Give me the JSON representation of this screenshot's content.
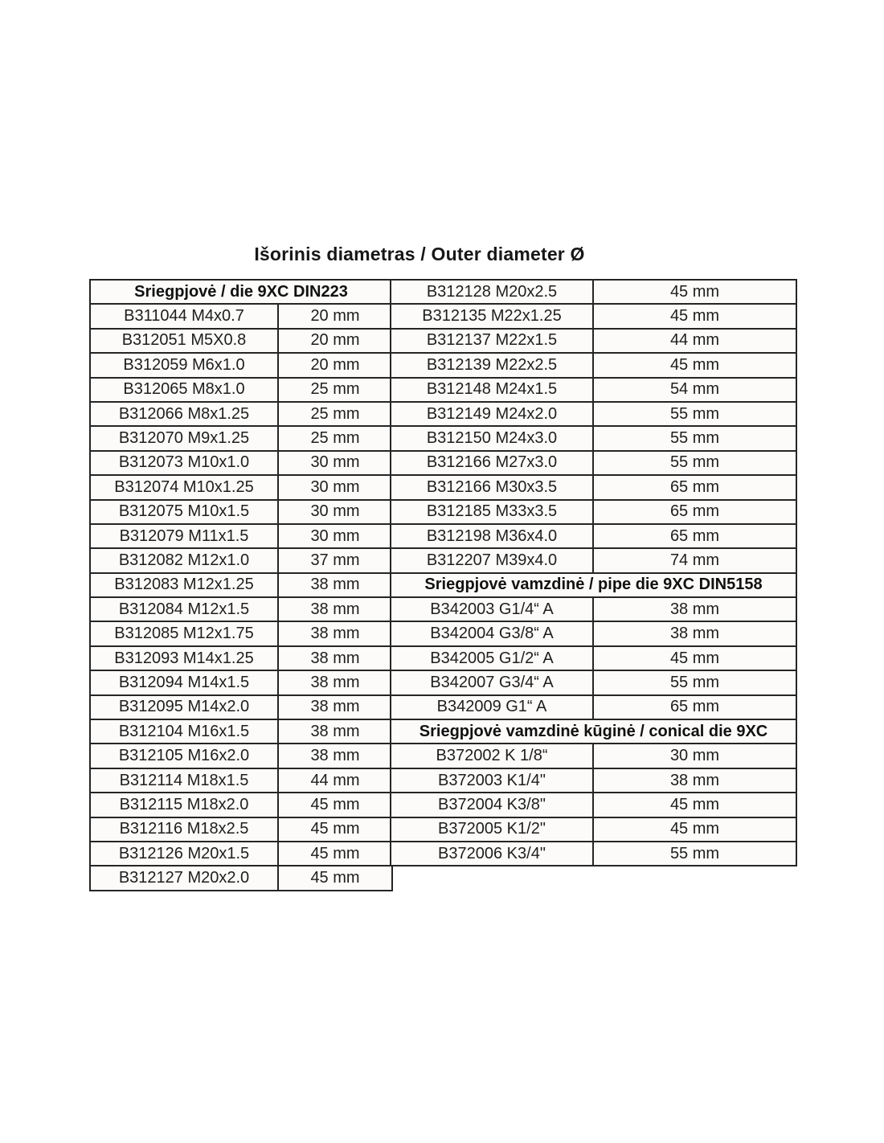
{
  "title": "Išorinis diametras / Outer diameter Ø",
  "left_table": {
    "header": "Sriegpjovė / die 9XC DIN223",
    "rows": [
      {
        "code": "B311044 M4x0.7",
        "diameter": "20 mm"
      },
      {
        "code": "B312051 M5X0.8",
        "diameter": "20 mm"
      },
      {
        "code": "B312059 M6x1.0",
        "diameter": "20 mm"
      },
      {
        "code": "B312065 M8x1.0",
        "diameter": "25 mm"
      },
      {
        "code": "B312066 M8x1.25",
        "diameter": "25 mm"
      },
      {
        "code": "B312070 M9x1.25",
        "diameter": "25 mm"
      },
      {
        "code": "B312073 M10x1.0",
        "diameter": "30 mm"
      },
      {
        "code": "B312074 M10x1.25",
        "diameter": "30 mm"
      },
      {
        "code": "B312075 M10x1.5",
        "diameter": "30 mm"
      },
      {
        "code": "B312079 M11x1.5",
        "diameter": "30 mm"
      },
      {
        "code": "B312082 M12x1.0",
        "diameter": "37 mm"
      },
      {
        "code": "B312083 M12x1.25",
        "diameter": "38 mm"
      },
      {
        "code": "B312084 M12x1.5",
        "diameter": "38 mm"
      },
      {
        "code": "B312085 M12x1.75",
        "diameter": "38 mm"
      },
      {
        "code": "B312093 M14x1.25",
        "diameter": "38 mm"
      },
      {
        "code": "B312094 M14x1.5",
        "diameter": "38 mm"
      },
      {
        "code": "B312095 M14x2.0",
        "diameter": "38 mm"
      },
      {
        "code": "B312104 M16x1.5",
        "diameter": "38 mm"
      },
      {
        "code": "B312105 M16x2.0",
        "diameter": "38 mm"
      },
      {
        "code": "B312114 M18x1.5",
        "diameter": "44 mm"
      },
      {
        "code": "B312115 M18x2.0",
        "diameter": "45 mm"
      },
      {
        "code": "B312116 M18x2.5",
        "diameter": "45 mm"
      },
      {
        "code": "B312126 M20x1.5",
        "diameter": "45 mm"
      },
      {
        "code": "B312127 M20x2.0",
        "diameter": "45 mm"
      }
    ]
  },
  "right_table": {
    "sections": [
      {
        "rows": [
          {
            "code": "B312128 M20x2.5",
            "diameter": "45 mm"
          },
          {
            "code": "B312135 M22x1.25",
            "diameter": "45 mm"
          },
          {
            "code": "B312137 M22x1.5",
            "diameter": "44 mm"
          },
          {
            "code": "B312139 M22x2.5",
            "diameter": "45 mm"
          },
          {
            "code": "B312148 M24x1.5",
            "diameter": "54 mm"
          },
          {
            "code": "B312149 M24x2.0",
            "diameter": "55 mm"
          },
          {
            "code": "B312150 M24x3.0",
            "diameter": "55 mm"
          },
          {
            "code": "B312166 M27x3.0",
            "diameter": "55 mm"
          },
          {
            "code": "B312166 M30x3.5",
            "diameter": "65 mm"
          },
          {
            "code": "B312185 M33x3.5",
            "diameter": "65 mm"
          },
          {
            "code": "B312198 M36x4.0",
            "diameter": "65 mm"
          },
          {
            "code": "B312207 M39x4.0",
            "diameter": "74 mm"
          }
        ]
      },
      {
        "header": "Sriegpjovė vamzdinė / pipe die 9XC DIN5158",
        "rows": [
          {
            "code": "B342003 G1/4“ A",
            "diameter": "38 mm"
          },
          {
            "code": "B342004 G3/8“ A",
            "diameter": "38 mm"
          },
          {
            "code": "B342005 G1/2“ A",
            "diameter": "45 mm"
          },
          {
            "code": "B342007 G3/4“ A",
            "diameter": "55 mm"
          },
          {
            "code": "B342009 G1“ A",
            "diameter": "65 mm"
          }
        ]
      },
      {
        "header": "Sriegpjovė vamzdinė kūginė / conical die 9XC",
        "rows": [
          {
            "code": "B372002 K 1/8“",
            "diameter": "30 mm"
          },
          {
            "code": "B372003 K1/4\"",
            "diameter": "38 mm"
          },
          {
            "code": "B372004 K3/8\"",
            "diameter": "45 mm"
          },
          {
            "code": "B372005 K1/2\"",
            "diameter": "45 mm"
          },
          {
            "code": "B372006 K3/4\"",
            "diameter": "55 mm"
          }
        ]
      }
    ]
  }
}
